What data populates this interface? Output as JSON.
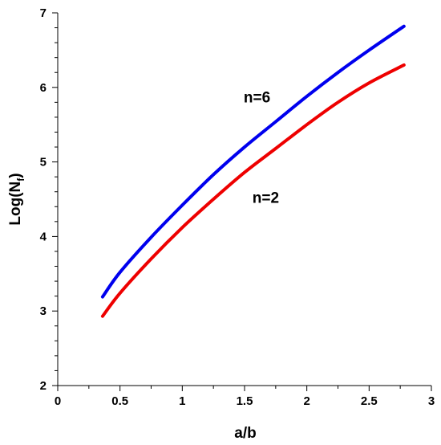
{
  "chart_data": {
    "type": "line",
    "xlabel": "a/b",
    "ylabel_main": "Log(N",
    "ylabel_sub": "f",
    "ylabel_close": ")",
    "xlim": [
      0,
      3
    ],
    "ylim": [
      2,
      7
    ],
    "xticks": [
      "0",
      "0.5",
      "1",
      "1.5",
      "2",
      "2.5",
      "3"
    ],
    "yticks": [
      "2",
      "3",
      "4",
      "5",
      "6",
      "7"
    ],
    "grid": false,
    "series": [
      {
        "name": "n=6",
        "color": "#0000ee",
        "x": [
          0.36,
          0.5,
          0.75,
          1.0,
          1.25,
          1.5,
          1.75,
          2.0,
          2.25,
          2.5,
          2.78
        ],
        "y": [
          3.19,
          3.52,
          3.99,
          4.42,
          4.83,
          5.2,
          5.54,
          5.88,
          6.2,
          6.5,
          6.82
        ]
      },
      {
        "name": "n=2",
        "color": "#ee0000",
        "x": [
          0.36,
          0.5,
          0.75,
          1.0,
          1.25,
          1.5,
          1.75,
          2.0,
          2.25,
          2.5,
          2.78
        ],
        "y": [
          2.93,
          3.24,
          3.7,
          4.12,
          4.5,
          4.86,
          5.18,
          5.5,
          5.8,
          6.06,
          6.3
        ]
      }
    ],
    "annotations": [
      {
        "text": "n=6",
        "x": 1.6,
        "y": 5.8
      },
      {
        "text": "n=2",
        "x": 1.67,
        "y": 4.45
      }
    ]
  }
}
